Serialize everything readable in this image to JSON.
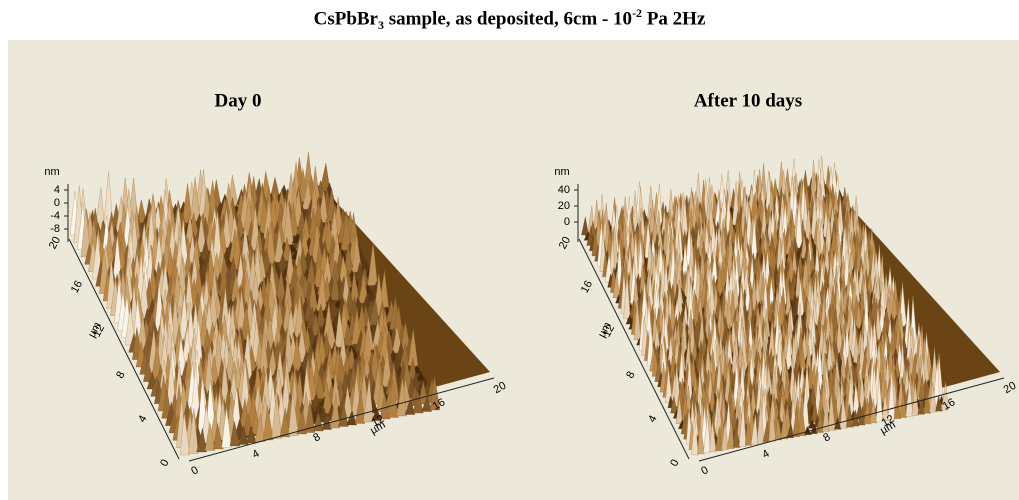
{
  "title": {
    "parts": [
      "CsPbBr",
      "3",
      " sample, as deposited, 6cm - 10",
      "-2",
      " Pa 2Hz"
    ]
  },
  "panels": [
    {
      "title": "Day 0",
      "z_unit": "nm",
      "z_ticks": [
        "4",
        "0",
        "-4",
        "-8"
      ],
      "y_unit": "µm",
      "y_ticks": [
        "20",
        "16",
        "12",
        "8",
        "4",
        "0"
      ],
      "x_unit": "µm",
      "x_ticks": [
        "0",
        "4",
        "8",
        "12",
        "16",
        "20"
      ]
    },
    {
      "title": "After 10 days",
      "z_unit": "nm",
      "z_ticks": [
        "40",
        "20",
        "0"
      ],
      "y_unit": "µm",
      "y_ticks": [
        "20",
        "16",
        "12",
        "8",
        "4",
        "0"
      ],
      "x_unit": "µm",
      "x_ticks": [
        "0",
        "4",
        "8",
        "12",
        "16",
        "20"
      ]
    }
  ]
}
